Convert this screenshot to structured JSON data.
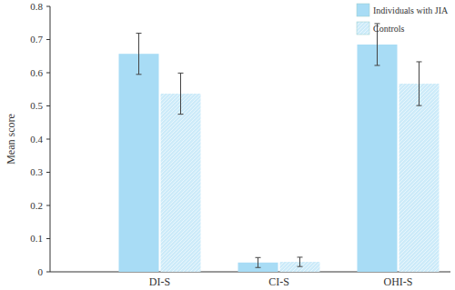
{
  "chart_data": {
    "type": "bar",
    "y_label": "Mean score",
    "categories": [
      "DI-S",
      "CI-S",
      "OHI-S"
    ],
    "series": [
      {
        "name": "Individuals with JIA",
        "color": "#a8dcf5",
        "values": [
          0.657,
          0.028,
          0.685
        ],
        "errors": [
          0.062,
          0.015,
          0.063
        ]
      },
      {
        "name": "Controls",
        "color": "#cdebf9",
        "values": [
          0.537,
          0.03,
          0.567
        ],
        "errors": [
          0.062,
          0.014,
          0.066
        ]
      }
    ],
    "ylim": [
      0,
      0.8
    ],
    "yticks": [
      0,
      0.1,
      0.2,
      0.3,
      0.4,
      0.5,
      0.6,
      0.7,
      0.8
    ],
    "grid": false,
    "legend": "top-right"
  }
}
